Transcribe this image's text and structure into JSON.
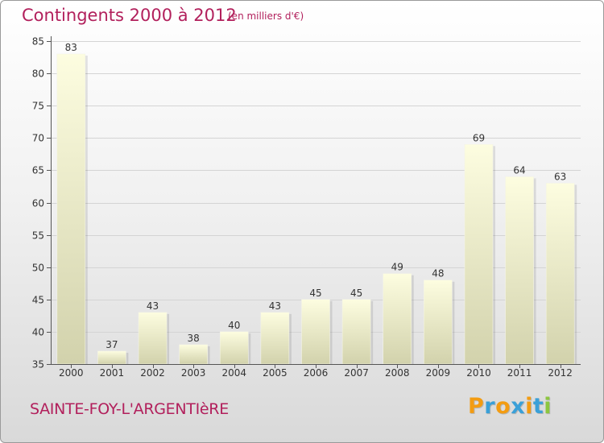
{
  "header": {
    "title": "Contingents 2000 à 2012",
    "subtitle": "(en milliers d'€)"
  },
  "footer": {
    "commune": "SAINTE-FOY-L'ARGENTIèRE",
    "logo_text": "Proxiti",
    "logo_colors": [
      "#f39c12",
      "#3aa0d8",
      "#f39c12",
      "#3aa0d8",
      "#f39c12",
      "#3aa0d8",
      "#8cc63f"
    ]
  },
  "chart_data": {
    "type": "bar",
    "categories": [
      "2000",
      "2001",
      "2002",
      "2003",
      "2004",
      "2005",
      "2006",
      "2007",
      "2008",
      "2009",
      "2010",
      "2011",
      "2012"
    ],
    "values": [
      83,
      37,
      43,
      38,
      40,
      43,
      45,
      45,
      49,
      48,
      69,
      64,
      63
    ],
    "ylim": [
      35,
      85
    ],
    "yticks": [
      35,
      40,
      45,
      50,
      55,
      60,
      65,
      70,
      75,
      80,
      85
    ],
    "grid": true,
    "bar_color_top": "#fdfde0",
    "bar_color_bottom": "#d2d2ac",
    "grid_color": "#d4d4d4"
  }
}
